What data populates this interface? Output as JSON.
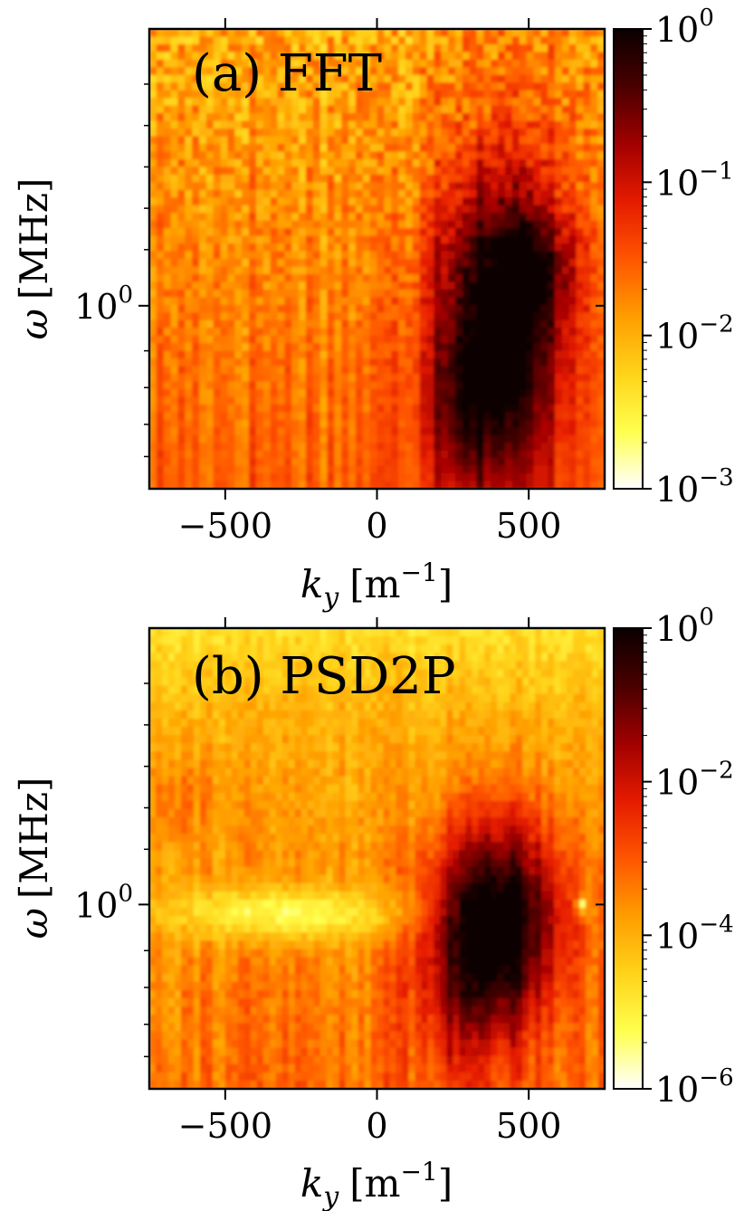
{
  "palette": {
    "cmap": [
      "#ffffff",
      "#ffff4d",
      "#ffd31a",
      "#ff9d00",
      "#ff5500",
      "#e51b00",
      "#a10000",
      "#4a0000",
      "#0a0000"
    ]
  },
  "chart_data": [
    {
      "type": "heatmap",
      "panel_label": "(a) FFT",
      "xlabel": {
        "main": "k",
        "sub": "y",
        "unit_open": "[m",
        "unit_sup": "−1",
        "unit_close": "]"
      },
      "ylabel": {
        "symbol": "ω",
        "unit": "[MHz]"
      },
      "xlim": [
        -750,
        750
      ],
      "x_ticks": [
        {
          "value": -500,
          "label": "−500"
        },
        {
          "value": 0,
          "label": "0"
        },
        {
          "value": 500,
          "label": "500"
        }
      ],
      "y_scale": "log",
      "y_ticks": [
        {
          "label": "10",
          "sup": "0"
        }
      ],
      "colorbar": {
        "scale": "log",
        "range": [
          0.001,
          1
        ],
        "ticks": [
          {
            "base": "10",
            "sup": "0"
          },
          {
            "base": "10",
            "sup": "−1"
          },
          {
            "base": "10",
            "sup": "−2"
          },
          {
            "base": "10",
            "sup": "−3"
          }
        ]
      },
      "features": [
        {
          "description_kx": [
            250,
            650
          ],
          "peak_ky": 400,
          "peak_omega_mhz": 0.9,
          "peak_value": 1
        }
      ]
    },
    {
      "type": "heatmap",
      "panel_label": "(b) PSD2P",
      "xlabel": {
        "main": "k",
        "sub": "y",
        "unit_open": "[m",
        "unit_sup": "−1",
        "unit_close": "]"
      },
      "ylabel": {
        "symbol": "ω",
        "unit": "[MHz]"
      },
      "xlim": [
        -750,
        750
      ],
      "x_ticks": [
        {
          "value": -500,
          "label": "−500"
        },
        {
          "value": 0,
          "label": "0"
        },
        {
          "value": 500,
          "label": "500"
        }
      ],
      "y_scale": "log",
      "y_ticks": [
        {
          "label": "10",
          "sup": "0"
        }
      ],
      "colorbar": {
        "scale": "log",
        "range": [
          1e-06,
          1
        ],
        "ticks": [
          {
            "base": "10",
            "sup": "0"
          },
          {
            "base": "10",
            "sup": "−2"
          },
          {
            "base": "10",
            "sup": "−4"
          },
          {
            "base": "10",
            "sup": "−6"
          }
        ]
      },
      "features": [
        {
          "peak_ky": 420,
          "peak_omega_mhz": 1.0,
          "peak_value": 1
        },
        {
          "low_band_ky": [
            -750,
            100
          ],
          "low_band_omega_mhz": 1.0
        }
      ]
    }
  ]
}
